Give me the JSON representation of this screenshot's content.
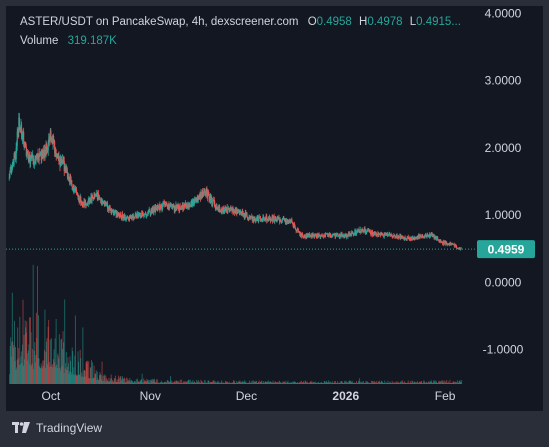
{
  "header": {
    "symbol": "ASTER/USDT on PancakeSwap, 4h, dexscreener.com",
    "o_label": "O",
    "o_value": "0.4958",
    "h_label": "H",
    "h_value": "0.4978",
    "l_label": "L",
    "l_value": "0.4915...",
    "volume_label": "Volume",
    "volume_value": "319.187K"
  },
  "footer": {
    "brand": "TradingView",
    "logo_icon": "tradingview-logo-icon"
  },
  "colors": {
    "up": "#26a69a",
    "down": "#ef5350",
    "background": "#131722",
    "frame": "#2a2e39",
    "text": "#d1d4dc",
    "price_tag": "#26a69a"
  },
  "chart_data": {
    "type": "candlestick",
    "title": "ASTER/USDT on PancakeSwap, 4h, dexscreener.com",
    "y_ticks": [
      "4.0000",
      "3.0000",
      "2.0000",
      "1.0000",
      "0.0000",
      "-1.0000"
    ],
    "y_tick_values": [
      4,
      3,
      2,
      1,
      0,
      -1
    ],
    "ylim": [
      -1.45,
      4.05
    ],
    "x_ticks": [
      "Oct",
      "Nov",
      "Dec",
      "2026",
      "Feb"
    ],
    "x_tick_dates": [
      "2025-10-01",
      "2025-11-01",
      "2025-12-01",
      "2026-01-01",
      "2026-02-01"
    ],
    "xlim": [
      "2025-09-17",
      "2026-02-10"
    ],
    "last_price": "0.4959",
    "last_price_value": 0.4959,
    "grid": false,
    "price_trend": [
      {
        "date": "2025-09-18",
        "close": 1.6
      },
      {
        "date": "2025-09-20",
        "close": 1.9
      },
      {
        "date": "2025-09-21",
        "close": 2.4
      },
      {
        "date": "2025-09-24",
        "close": 1.85
      },
      {
        "date": "2025-09-26",
        "close": 1.8
      },
      {
        "date": "2025-09-30",
        "close": 2.0
      },
      {
        "date": "2025-10-01",
        "close": 2.2
      },
      {
        "date": "2025-10-03",
        "close": 1.85
      },
      {
        "date": "2025-10-05",
        "close": 1.75
      },
      {
        "date": "2025-10-08",
        "close": 1.4
      },
      {
        "date": "2025-10-11",
        "close": 1.15
      },
      {
        "date": "2025-10-15",
        "close": 1.3
      },
      {
        "date": "2025-10-20",
        "close": 1.05
      },
      {
        "date": "2025-10-25",
        "close": 0.95
      },
      {
        "date": "2025-11-01",
        "close": 1.05
      },
      {
        "date": "2025-11-05",
        "close": 1.15
      },
      {
        "date": "2025-11-10",
        "close": 1.1
      },
      {
        "date": "2025-11-15",
        "close": 1.2
      },
      {
        "date": "2025-11-18",
        "close": 1.35
      },
      {
        "date": "2025-11-22",
        "close": 1.1
      },
      {
        "date": "2025-11-28",
        "close": 1.05
      },
      {
        "date": "2025-12-03",
        "close": 0.95
      },
      {
        "date": "2025-12-10",
        "close": 0.95
      },
      {
        "date": "2025-12-15",
        "close": 0.9
      },
      {
        "date": "2025-12-18",
        "close": 0.7
      },
      {
        "date": "2025-12-25",
        "close": 0.7
      },
      {
        "date": "2026-01-01",
        "close": 0.7
      },
      {
        "date": "2026-01-06",
        "close": 0.78
      },
      {
        "date": "2026-01-10",
        "close": 0.72
      },
      {
        "date": "2026-01-15",
        "close": 0.7
      },
      {
        "date": "2026-01-20",
        "close": 0.65
      },
      {
        "date": "2026-01-25",
        "close": 0.68
      },
      {
        "date": "2026-01-28",
        "close": 0.7
      },
      {
        "date": "2026-01-31",
        "close": 0.6
      },
      {
        "date": "2026-02-04",
        "close": 0.55
      },
      {
        "date": "2026-02-06",
        "close": 0.4959
      }
    ],
    "volume_trend": [
      {
        "date": "2025-09-18",
        "level": 0.55
      },
      {
        "date": "2025-09-22",
        "level": 1.0
      },
      {
        "date": "2025-09-26",
        "level": 0.8
      },
      {
        "date": "2025-10-01",
        "level": 0.95
      },
      {
        "date": "2025-10-05",
        "level": 0.6
      },
      {
        "date": "2025-10-08",
        "level": 0.5
      },
      {
        "date": "2025-10-12",
        "level": 0.35
      },
      {
        "date": "2025-10-17",
        "level": 0.15
      },
      {
        "date": "2025-10-25",
        "level": 0.08
      },
      {
        "date": "2025-11-10",
        "level": 0.05
      },
      {
        "date": "2025-12-15",
        "level": 0.04
      },
      {
        "date": "2026-01-15",
        "level": 0.04
      },
      {
        "date": "2026-02-06",
        "level": 0.05
      }
    ]
  }
}
